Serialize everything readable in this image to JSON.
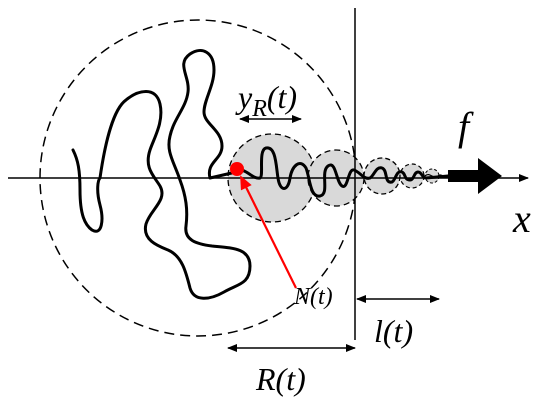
{
  "labels": {
    "force": "f",
    "axis_x": "x",
    "monomer": "N(t)",
    "l": "l(t)",
    "R": "R(t)",
    "yR_main": "y",
    "yR_sub": "R",
    "yR_tail": "(t)"
  },
  "colors": {
    "chain": "#000000",
    "blob_fill": "#d9d9d9",
    "marker": "#ff0000",
    "dashed": "#000000"
  }
}
